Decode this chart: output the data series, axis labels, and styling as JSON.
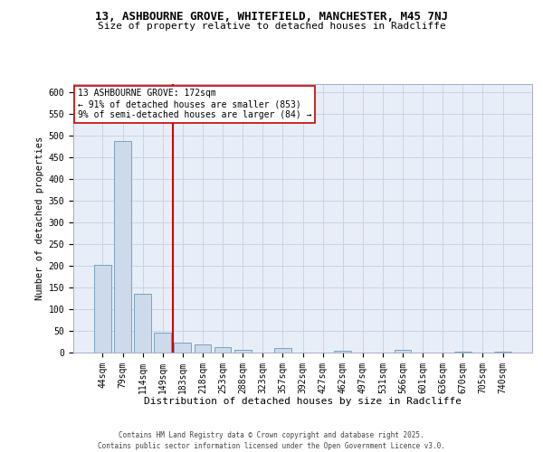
{
  "title_line1": "13, ASHBOURNE GROVE, WHITEFIELD, MANCHESTER, M45 7NJ",
  "title_line2": "Size of property relative to detached houses in Radcliffe",
  "xlabel": "Distribution of detached houses by size in Radcliffe",
  "ylabel": "Number of detached properties",
  "footer_line1": "Contains HM Land Registry data © Crown copyright and database right 2025.",
  "footer_line2": "Contains public sector information licensed under the Open Government Licence v3.0.",
  "property_label": "13 ASHBOURNE GROVE: 172sqm",
  "annotation_line1": "← 91% of detached houses are smaller (853)",
  "annotation_line2": "9% of semi-detached houses are larger (84) →",
  "property_value": 172,
  "bar_color": "#ccdaeb",
  "bar_edge_color": "#6699bb",
  "highlight_color": "#cc0000",
  "grid_color": "#c8d4e4",
  "bg_color": "#e8eef8",
  "categories": [
    "44sqm",
    "79sqm",
    "114sqm",
    "149sqm",
    "183sqm",
    "218sqm",
    "253sqm",
    "288sqm",
    "323sqm",
    "357sqm",
    "392sqm",
    "427sqm",
    "462sqm",
    "497sqm",
    "531sqm",
    "566sqm",
    "601sqm",
    "636sqm",
    "670sqm",
    "705sqm",
    "740sqm"
  ],
  "values": [
    203,
    487,
    135,
    46,
    22,
    19,
    13,
    7,
    1,
    10,
    1,
    1,
    5,
    1,
    0,
    7,
    1,
    0,
    3,
    1,
    3
  ],
  "ylim": [
    0,
    620
  ],
  "yticks": [
    0,
    50,
    100,
    150,
    200,
    250,
    300,
    350,
    400,
    450,
    500,
    550,
    600
  ],
  "red_line_x": 3.5,
  "title_fontsize": 9,
  "subtitle_fontsize": 8,
  "xlabel_fontsize": 8,
  "ylabel_fontsize": 7.5,
  "tick_fontsize": 7,
  "annot_fontsize": 7,
  "footer_fontsize": 5.5
}
